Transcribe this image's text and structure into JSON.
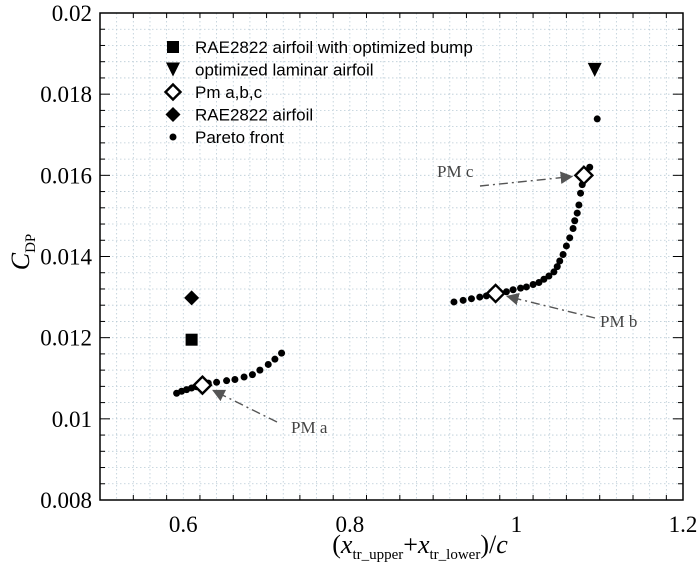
{
  "chart_data": {
    "type": "scatter",
    "title": "",
    "xlabel": {
      "open": "(",
      "v1": "x",
      "s1": "tr_upper",
      "plus": "+",
      "v2": "x",
      "s2": "tr_lower",
      "close": ")/",
      "v3": "c"
    },
    "ylabel": {
      "main": "C",
      "sub": "DP"
    },
    "xlim": [
      0.5,
      1.2
    ],
    "ylim": [
      0.008,
      0.02
    ],
    "xticks": [
      {
        "value": 0.6,
        "label": "0.6"
      },
      {
        "value": 0.8,
        "label": "0.8"
      },
      {
        "value": 1.0,
        "label": "1"
      },
      {
        "value": 1.2,
        "label": "1.2"
      }
    ],
    "yticks": [
      {
        "value": 0.008,
        "label": "0.008"
      },
      {
        "value": 0.01,
        "label": "0.01"
      },
      {
        "value": 0.012,
        "label": "0.012"
      },
      {
        "value": 0.014,
        "label": "0.014"
      },
      {
        "value": 0.016,
        "label": "0.016"
      },
      {
        "value": 0.018,
        "label": "0.018"
      },
      {
        "value": 0.02,
        "label": "0.02"
      }
    ],
    "grid": "dotted minor grid",
    "legend_position": "top-left",
    "series": [
      {
        "name": "RAE2822 airfoil with optimized bump",
        "marker": "square",
        "points": [
          [
            0.61,
            0.01195
          ]
        ]
      },
      {
        "name": "optimized laminar airfoil",
        "marker": "triangle-down",
        "points": [
          [
            1.094,
            0.0186
          ]
        ]
      },
      {
        "name": "Pm a,b,c",
        "marker": "diamond-open",
        "points": [
          [
            0.623,
            0.01083
          ],
          [
            0.975,
            0.01309
          ],
          [
            1.081,
            0.016
          ]
        ]
      },
      {
        "name": "RAE2822 airfoil",
        "marker": "diamond",
        "points": [
          [
            0.61,
            0.01298
          ]
        ]
      },
      {
        "name": "Pareto front",
        "marker": "dot",
        "points": [
          [
            0.592,
            0.01063
          ],
          [
            0.598,
            0.01068
          ],
          [
            0.604,
            0.01072
          ],
          [
            0.61,
            0.01076
          ],
          [
            0.616,
            0.01079
          ],
          [
            0.63,
            0.01088
          ],
          [
            0.64,
            0.0109
          ],
          [
            0.652,
            0.01094
          ],
          [
            0.662,
            0.01097
          ],
          [
            0.673,
            0.01103
          ],
          [
            0.683,
            0.01109
          ],
          [
            0.692,
            0.0112
          ],
          [
            0.702,
            0.01134
          ],
          [
            0.71,
            0.01147
          ],
          [
            0.718,
            0.01162
          ],
          [
            0.925,
            0.01288
          ],
          [
            0.936,
            0.01292
          ],
          [
            0.946,
            0.01296
          ],
          [
            0.956,
            0.013
          ],
          [
            0.964,
            0.01303
          ],
          [
            0.988,
            0.01313
          ],
          [
            0.996,
            0.01318
          ],
          [
            1.005,
            0.01322
          ],
          [
            1.012,
            0.01325
          ],
          [
            1.02,
            0.01331
          ],
          [
            1.027,
            0.01336
          ],
          [
            1.033,
            0.01344
          ],
          [
            1.039,
            0.01352
          ],
          [
            1.045,
            0.01362
          ],
          [
            1.049,
            0.01375
          ],
          [
            1.052,
            0.01389
          ],
          [
            1.056,
            0.01405
          ],
          [
            1.06,
            0.01426
          ],
          [
            1.064,
            0.01446
          ],
          [
            1.068,
            0.01469
          ],
          [
            1.07,
            0.01488
          ],
          [
            1.073,
            0.01507
          ],
          [
            1.075,
            0.01527
          ],
          [
            1.077,
            0.01556
          ],
          [
            1.079,
            0.01577
          ],
          [
            1.083,
            0.01606
          ],
          [
            1.088,
            0.0162
          ],
          [
            1.097,
            0.01739
          ]
        ]
      }
    ],
    "annotations": [
      {
        "text": "PM c",
        "point": [
          1.081,
          0.016
        ]
      },
      {
        "text": "PM b",
        "point": [
          0.975,
          0.01309
        ]
      },
      {
        "text": "PM a",
        "point": [
          0.623,
          0.01083
        ]
      }
    ]
  }
}
